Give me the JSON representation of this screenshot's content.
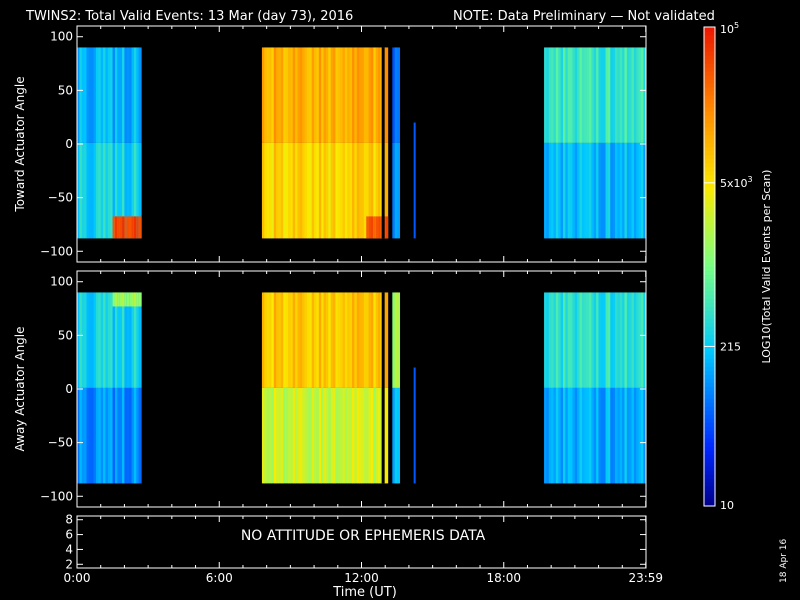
{
  "header": {
    "title": "TWINS2: Total Valid Events: 13 Mar (day  73), 2016",
    "note": "NOTE: Data Preliminary — Not validated",
    "note_color": "#ff2a2a"
  },
  "footer": {
    "xlabel": "Time (UT)",
    "date_stamp": "18 Apr 16"
  },
  "colorbar": {
    "label": "LOG10(Total Valid Events per Scan)",
    "ticks": [
      "10",
      "215",
      "5x10^3",
      "10^5"
    ],
    "scale": "log",
    "range": [
      10,
      100000
    ],
    "colormap": "rainbow (blue to red)"
  },
  "chart_data": [
    {
      "type": "heatmap",
      "ylabel": "Toward Actuator Angle",
      "xlim": [
        0,
        24
      ],
      "ylim": [
        -110,
        110
      ],
      "x_ticks": [
        "0:00",
        "6:00",
        "12:00",
        "18:00",
        "23:59"
      ],
      "y_ticks": [
        100,
        50,
        0,
        -50,
        -100
      ],
      "data_angle_range": [
        -88,
        90
      ],
      "z_scale": "log",
      "z_range": [
        10,
        100000
      ],
      "segments": [
        {
          "x_start": 0.0,
          "x_end": 2.7,
          "level_top": 0.3,
          "level_bottom": 0.35,
          "high_bottom_start": 1.5,
          "high_bottom_level": 0.93
        },
        {
          "x_start": 7.8,
          "x_end": 13.1,
          "level_top": 0.76,
          "level_bottom": 0.7,
          "high_bottom_start": 12.2,
          "high_bottom_level": 0.9
        },
        {
          "x_start": 13.3,
          "x_end": 13.6,
          "level_top": 0.2,
          "level_bottom": 0.25
        },
        {
          "x_start": 19.7,
          "x_end": 23.99,
          "level_top": 0.4,
          "level_bottom": 0.3
        }
      ],
      "spike": {
        "x": 14.2,
        "y_range": [
          -88,
          20
        ]
      }
    },
    {
      "type": "heatmap",
      "ylabel": "Away Actuator Angle",
      "xlim": [
        0,
        24
      ],
      "ylim": [
        -110,
        110
      ],
      "x_ticks": [
        "0:00",
        "6:00",
        "12:00",
        "18:00",
        "23:59"
      ],
      "y_ticks": [
        100,
        50,
        0,
        -50,
        -100
      ],
      "data_angle_range": [
        -88,
        90
      ],
      "z_scale": "log",
      "z_range": [
        10,
        100000
      ],
      "segments": [
        {
          "x_start": 0.0,
          "x_end": 2.7,
          "level_top": 0.35,
          "level_bottom": 0.25,
          "high_top_start": 1.5,
          "high_top_level": 0.55
        },
        {
          "x_start": 7.8,
          "x_end": 13.1,
          "level_top": 0.72,
          "level_bottom": 0.6
        },
        {
          "x_start": 13.3,
          "x_end": 13.6,
          "level_top": 0.55,
          "level_bottom": 0.3
        },
        {
          "x_start": 19.7,
          "x_end": 23.99,
          "level_top": 0.38,
          "level_bottom": 0.28
        }
      ],
      "spike": {
        "x": 14.2,
        "y_range": [
          -88,
          20
        ]
      }
    },
    {
      "type": "line",
      "xlim": [
        0,
        24
      ],
      "ylim": [
        1.5,
        8.5
      ],
      "x_ticks": [
        "0:00",
        "6:00",
        "12:00",
        "18:00",
        "23:59"
      ],
      "y_ticks": [
        8,
        6,
        4,
        2
      ],
      "message": "NO ATTITUDE OR EPHEMERIS DATA"
    }
  ]
}
